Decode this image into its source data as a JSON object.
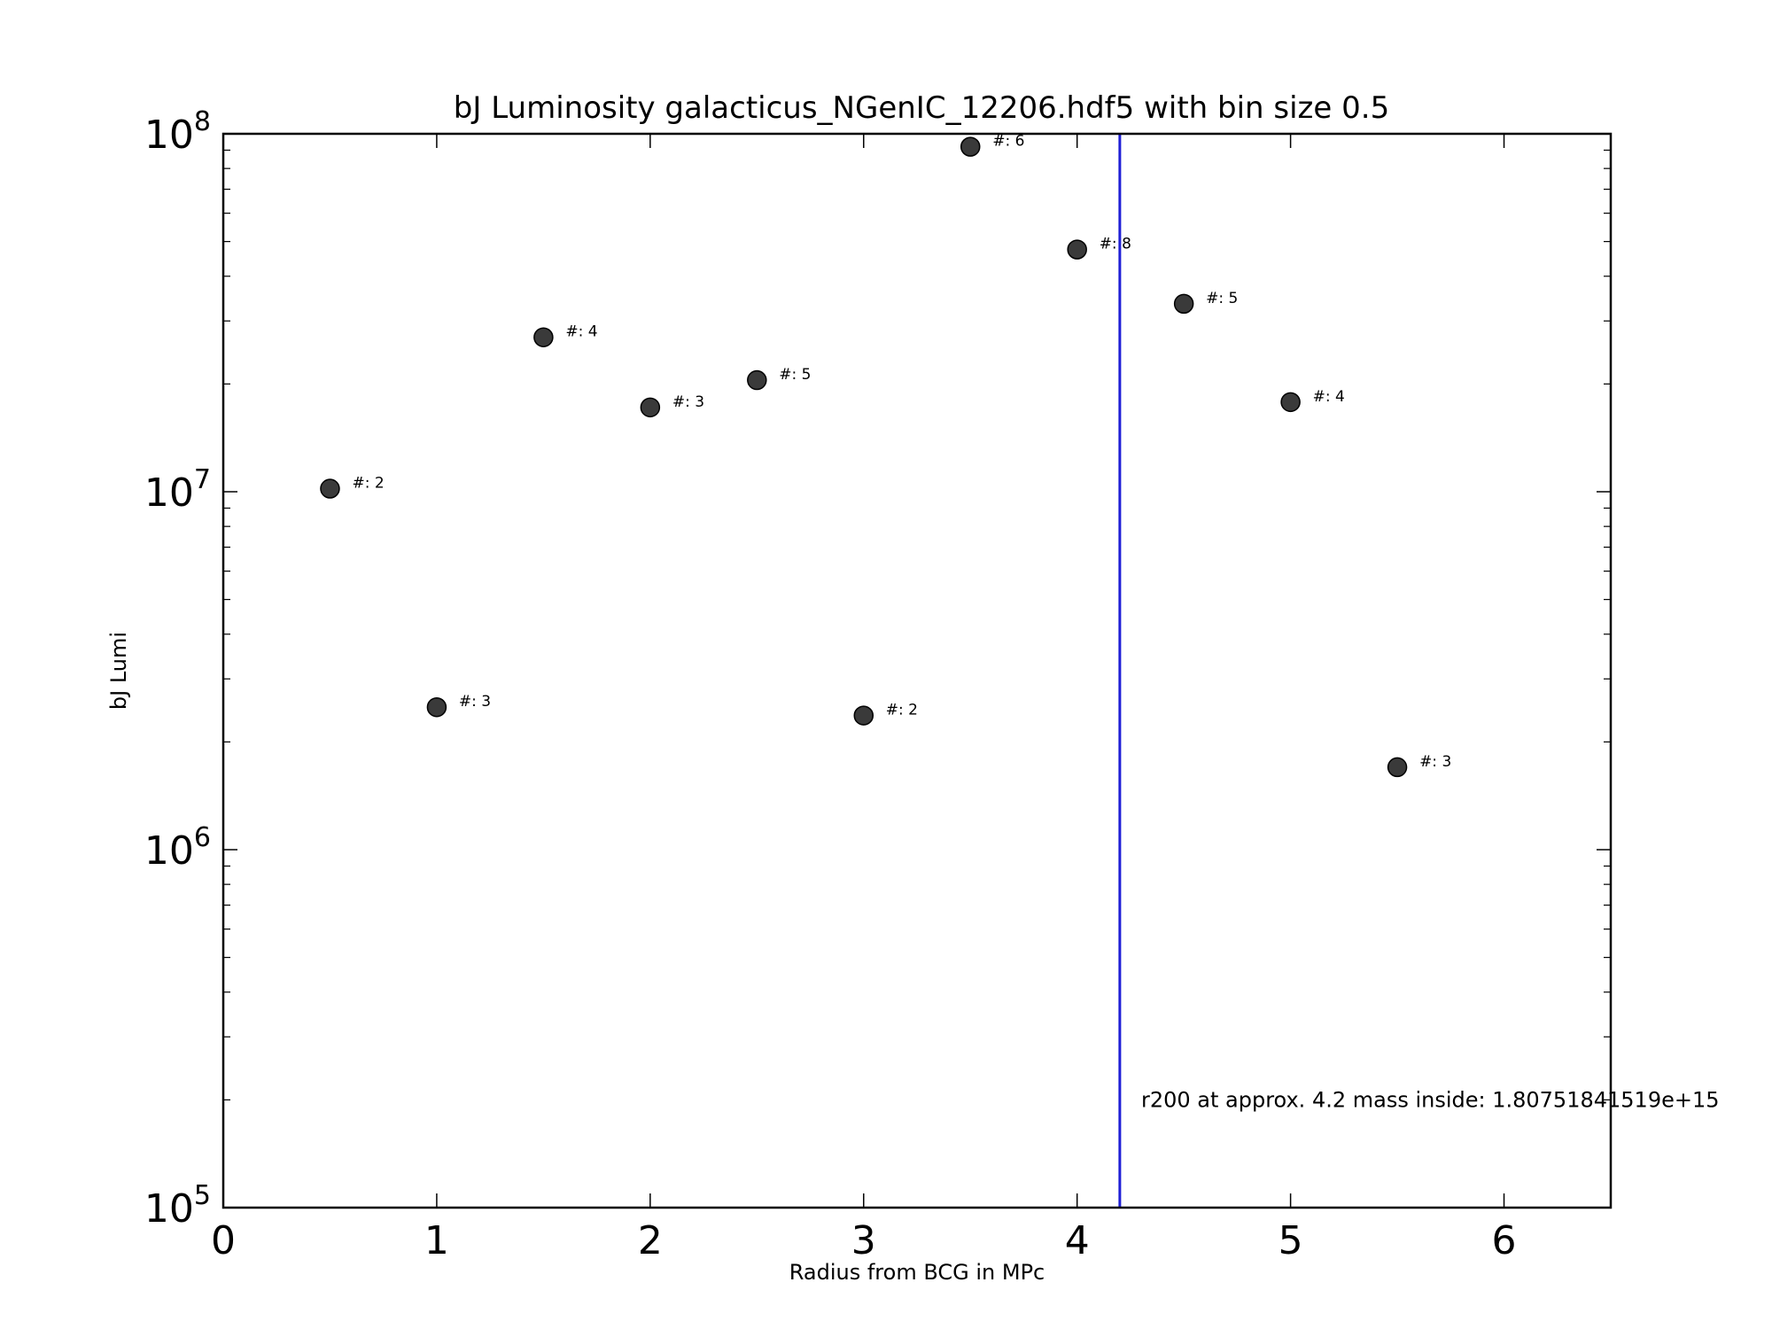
{
  "chart_data": {
    "type": "scatter",
    "title": "bJ Luminosity galacticus_NGenIC_12206.hdf5 with bin size 0.5",
    "xlabel": "Radius from BCG in MPc",
    "ylabel": "bJ Lumi",
    "xlim": [
      0,
      6.5
    ],
    "ylim": [
      100000,
      100000000
    ],
    "yscale": "log",
    "x_ticks": [
      "0",
      "1",
      "2",
      "3",
      "4",
      "5",
      "6"
    ],
    "y_ticks": [
      {
        "base": "10",
        "exp": "5"
      },
      {
        "base": "10",
        "exp": "6"
      },
      {
        "base": "10",
        "exp": "7"
      },
      {
        "base": "10",
        "exp": "8"
      }
    ],
    "marker_color": "#3a3a3a",
    "points": [
      {
        "x": 0.5,
        "y": 10200000,
        "label": "#: 2"
      },
      {
        "x": 1.0,
        "y": 2500000,
        "label": "#: 3"
      },
      {
        "x": 1.5,
        "y": 27000000,
        "label": "#: 4"
      },
      {
        "x": 2.0,
        "y": 17200000,
        "label": "#: 3"
      },
      {
        "x": 2.5,
        "y": 20500000,
        "label": "#: 5"
      },
      {
        "x": 3.0,
        "y": 2370000,
        "label": "#: 2"
      },
      {
        "x": 3.5,
        "y": 92000000,
        "label": "#: 6"
      },
      {
        "x": 4.0,
        "y": 47500000,
        "label": "#: 8"
      },
      {
        "x": 4.5,
        "y": 33500000,
        "label": "#: 5"
      },
      {
        "x": 5.0,
        "y": 17800000,
        "label": "#: 4"
      },
      {
        "x": 5.5,
        "y": 1700000,
        "label": "#: 3"
      }
    ],
    "vline": {
      "x": 4.2,
      "color": "#1f1fd6"
    },
    "annotation": {
      "text": "r200 at approx. 4.2 mass inside: 1.80751841519e+15",
      "x": 4.3,
      "y": 200000
    },
    "grid": false
  }
}
